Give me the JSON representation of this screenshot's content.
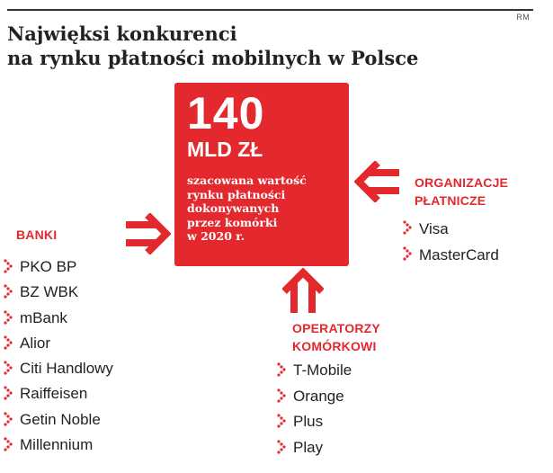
{
  "credit": "RM",
  "title": {
    "line1": "Najwięksi konkurenci",
    "line2": "na rynku płatności mobilnych w Polsce"
  },
  "center": {
    "value": "140",
    "unit": "MLD ZŁ",
    "description": [
      "szacowana wartość",
      "rynku płatności",
      "dokonywanych",
      "przez komórki",
      "w 2020 r."
    ]
  },
  "banks": {
    "heading": "BANKI",
    "items": [
      "PKO BP",
      "BZ WBK",
      "mBank",
      "Alior",
      "Citi Handlowy",
      "Raiffeisen",
      "Getin Noble",
      "Millennium"
    ]
  },
  "operators": {
    "heading": [
      "OPERATORZY",
      "KOMÓRKOWI"
    ],
    "items": [
      "T-Mobile",
      "Orange",
      "Plus",
      "Play"
    ]
  },
  "organizations": {
    "heading": [
      "ORGANIZACJE",
      "PŁATNICZE"
    ],
    "items": [
      "Visa",
      "MasterCard"
    ]
  },
  "colors": {
    "accent": "#e3282e",
    "text": "#222222"
  },
  "icons": {
    "arrow": "arrow-icon",
    "bullet": "dotted-chevron-bullet-icon"
  }
}
